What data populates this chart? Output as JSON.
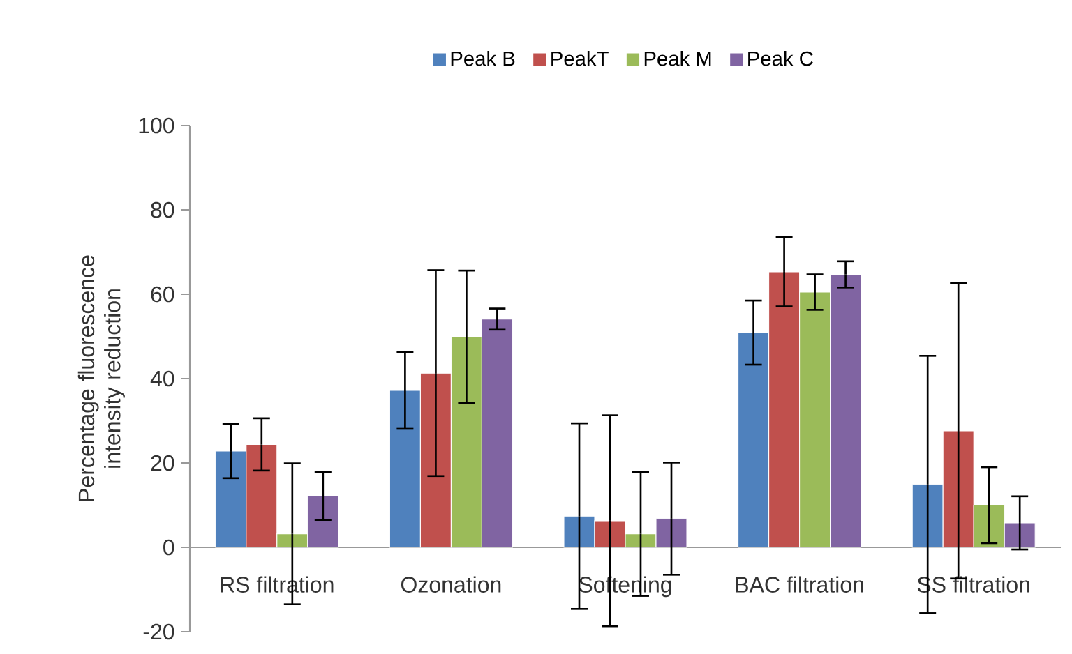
{
  "chart_data": {
    "type": "bar",
    "ylabel": "Percentage fluorescence intensity reduction",
    "categories": [
      "RS filtration",
      "Ozonation",
      "Softening",
      "BAC filtration",
      "SS filtration"
    ],
    "series": [
      {
        "name": "Peak B",
        "color": "#4f81bd",
        "values": [
          22.8,
          37.2,
          7.4,
          50.9,
          14.9
        ],
        "errors": [
          6.4,
          9.1,
          22,
          7.6,
          30.5
        ]
      },
      {
        "name": "PeakT",
        "color": "#c0504d",
        "values": [
          24.4,
          41.3,
          6.3,
          65.3,
          27.6
        ],
        "errors": [
          6.2,
          24.4,
          25,
          8.2,
          35
        ]
      },
      {
        "name": "Peak M",
        "color": "#9bbb59",
        "values": [
          3.2,
          49.9,
          3.2,
          60.5,
          10.0
        ],
        "errors": [
          16.7,
          15.7,
          14.7,
          4.2,
          9
        ]
      },
      {
        "name": "Peak C",
        "color": "#8064a2",
        "values": [
          12.2,
          54.1,
          6.8,
          64.7,
          5.8
        ],
        "errors": [
          5.7,
          2.5,
          13.3,
          3.1,
          6.3
        ]
      }
    ],
    "ylim": [
      -20,
      100
    ],
    "yticks": [
      -20,
      0,
      20,
      40,
      60,
      80,
      100
    ],
    "grid": false,
    "legend": "top"
  }
}
